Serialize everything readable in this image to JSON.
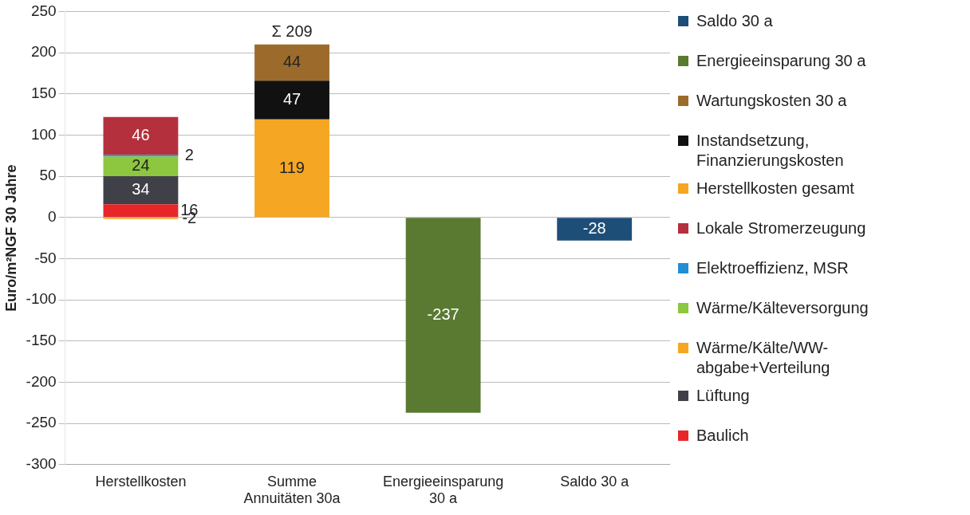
{
  "chart_data": {
    "type": "bar",
    "stacked": true,
    "ylabel": "Euro/m²NGF 30 Jahre",
    "categories": [
      "Herstellkosten",
      "Summe Annuitäten 30a",
      "Energieeinsparung 30 a",
      "Saldo 30 a"
    ],
    "series": [
      {
        "name": "Baulich",
        "color": "#e8262a",
        "values": [
          16,
          null,
          null,
          null
        ]
      },
      {
        "name": "Lüftung",
        "color": "#404048",
        "values": [
          34,
          null,
          null,
          null
        ]
      },
      {
        "name": "Wärme/Kälte/WW-abgabe+Verteilung",
        "color": "#f5a623",
        "values": [
          -2,
          null,
          null,
          null
        ]
      },
      {
        "name": "Wärme/Kälteversorgung",
        "color": "#8dc63f",
        "values": [
          24,
          null,
          null,
          null
        ]
      },
      {
        "name": "Elektroeffizienz, MSR",
        "color": "#1f8fd6",
        "values": [
          2,
          null,
          null,
          null
        ]
      },
      {
        "name": "Lokale Stromerzeugung",
        "color": "#b5303d",
        "values": [
          46,
          null,
          null,
          null
        ]
      },
      {
        "name": "Herstellkosten gesamt",
        "color": "#f5a623",
        "values": [
          null,
          119,
          null,
          null
        ]
      },
      {
        "name": "Instandsetzung, Finanzierungskosten",
        "color": "#111111",
        "values": [
          null,
          47,
          null,
          null
        ]
      },
      {
        "name": "Wartungskosten 30 a",
        "color": "#9c6b2b",
        "values": [
          null,
          44,
          null,
          null
        ]
      },
      {
        "name": "Energieeinsparung 30 a",
        "color": "#5a7a32",
        "values": [
          null,
          null,
          -237,
          null
        ]
      },
      {
        "name": "Saldo 30 a",
        "color": "#1d4e78",
        "values": [
          null,
          null,
          null,
          -28
        ]
      }
    ],
    "ylim": [
      -300,
      250
    ],
    "yticks": [
      -300,
      -250,
      -200,
      -150,
      -100,
      -50,
      0,
      50,
      100,
      150,
      200,
      250
    ],
    "grid": "y",
    "legend": "right",
    "data_labels": true,
    "annotations": [
      {
        "text": "Σ 209",
        "x": "Summe Annuitäten 30a",
        "y": 209
      }
    ]
  }
}
